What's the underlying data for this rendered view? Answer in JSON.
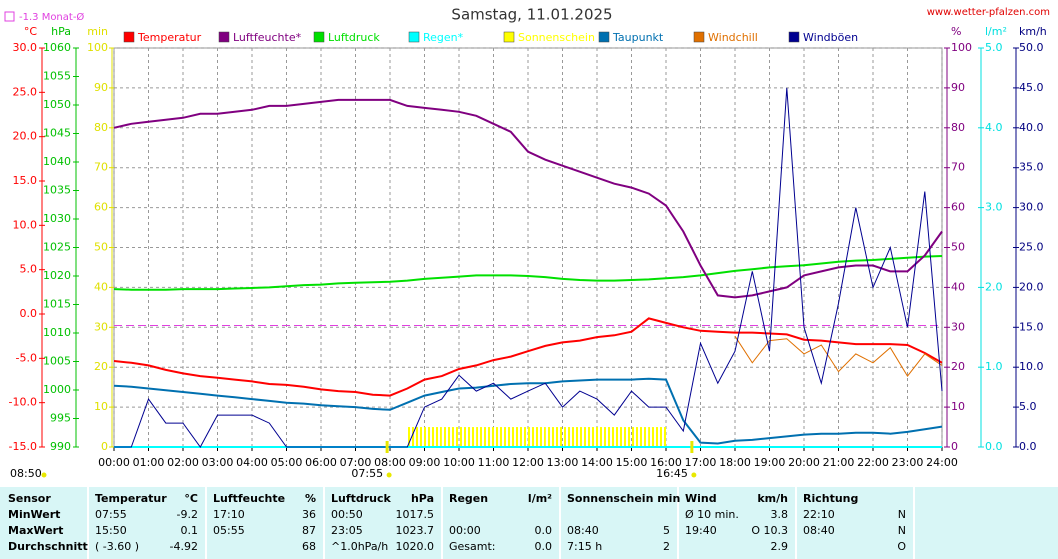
{
  "site": "www.wetter-pfalzen.com",
  "chart_data": {
    "type": "line",
    "title": "Samstag, 11.01.2025",
    "reference": {
      "label": "-1.3 Monat-Ø",
      "value": -1.3,
      "axis": 0,
      "color": "#e040e0"
    },
    "axes": [
      {
        "label": "°C",
        "color": "#ff0000",
        "side": "left",
        "lim": [
          -15,
          30
        ],
        "ticks": [
          {
            "value": -15,
            "label": "-15.0"
          },
          {
            "value": -10,
            "label": "-10.0"
          },
          {
            "value": -5,
            "label": "-5.0"
          },
          {
            "value": 0,
            "label": "0.0"
          },
          {
            "value": 5,
            "label": "5.0"
          },
          {
            "value": 10,
            "label": "10.0"
          },
          {
            "value": 15,
            "label": "15.0"
          },
          {
            "value": 20,
            "label": "20.0"
          },
          {
            "value": 25,
            "label": "25.0"
          },
          {
            "value": 30,
            "label": "30.0"
          }
        ]
      },
      {
        "label": "hPa",
        "color": "#00c000",
        "side": "left",
        "lim": [
          990,
          1060
        ],
        "ticks": [
          990,
          995,
          1000,
          1005,
          1010,
          1015,
          1020,
          1025,
          1030,
          1035,
          1040,
          1045,
          1050,
          1055,
          1060
        ]
      },
      {
        "label": "min",
        "color": "#e0e000",
        "side": "left",
        "lim": [
          0,
          100
        ],
        "ticks": [
          0,
          10,
          20,
          30,
          40,
          50,
          60,
          70,
          80,
          90,
          100
        ]
      },
      {
        "label": "%",
        "color": "#800080",
        "side": "right",
        "lim": [
          0,
          100
        ],
        "ticks": [
          0,
          10,
          20,
          30,
          40,
          50,
          60,
          70,
          80,
          90,
          100
        ],
        "grid": true
      },
      {
        "label": "l/m²",
        "color": "#00e0e0",
        "side": "right",
        "lim": [
          0,
          5
        ],
        "ticks": [
          {
            "value": 0,
            "label": "0.0"
          },
          {
            "value": 1,
            "label": "1.0"
          },
          {
            "value": 2,
            "label": "2.0"
          },
          {
            "value": 3,
            "label": "3.0"
          },
          {
            "value": 4,
            "label": "4.0"
          },
          {
            "value": 5,
            "label": "5.0"
          }
        ]
      },
      {
        "label": "km/h",
        "color": "#000080",
        "side": "right",
        "lim": [
          0,
          50
        ],
        "ticks": [
          {
            "value": 0,
            "label": "0.0"
          },
          {
            "value": 5,
            "label": "5.0"
          },
          {
            "value": 10,
            "label": "10.0"
          },
          {
            "value": 15,
            "label": "15.0"
          },
          {
            "value": 20,
            "label": "20.0"
          },
          {
            "value": 25,
            "label": "25.0"
          },
          {
            "value": 30,
            "label": "30.0"
          },
          {
            "value": 35,
            "label": "35.0"
          },
          {
            "value": 40,
            "label": "40.0"
          },
          {
            "value": 45,
            "label": "45.0"
          },
          {
            "value": 50,
            "label": "50.0"
          }
        ]
      }
    ],
    "xlim": [
      0,
      24
    ],
    "xticks": [
      {
        "value": 0,
        "label": "00:00"
      },
      {
        "value": 1,
        "label": "01:00"
      },
      {
        "value": 2,
        "label": "02:00"
      },
      {
        "value": 3,
        "label": "03:00"
      },
      {
        "value": 4,
        "label": "04:00"
      },
      {
        "value": 5,
        "label": "05:00"
      },
      {
        "value": 6,
        "label": "06:00"
      },
      {
        "value": 7,
        "label": "07:00"
      },
      {
        "value": 8,
        "label": "08:00"
      },
      {
        "value": 9,
        "label": "09:00"
      },
      {
        "value": 10,
        "label": "10:00"
      },
      {
        "value": 11,
        "label": "11:00"
      },
      {
        "value": 12,
        "label": "12:00"
      },
      {
        "value": 13,
        "label": "13:00"
      },
      {
        "value": 14,
        "label": "14:00"
      },
      {
        "value": 15,
        "label": "15:00"
      },
      {
        "value": 16,
        "label": "16:00"
      },
      {
        "value": 17,
        "label": "17:00"
      },
      {
        "value": 18,
        "label": "18:00"
      },
      {
        "value": 19,
        "label": "19:00"
      },
      {
        "value": 20,
        "label": "20:00"
      },
      {
        "value": 21,
        "label": "21:00"
      },
      {
        "value": 22,
        "label": "22:00"
      },
      {
        "value": 23,
        "label": "23:00"
      },
      {
        "value": 24,
        "label": "24:00"
      }
    ],
    "grid": true,
    "x": [
      0,
      0.5,
      1,
      1.5,
      2,
      2.5,
      3,
      3.5,
      4,
      4.5,
      5,
      5.5,
      6,
      6.5,
      7,
      7.5,
      8,
      8.5,
      9,
      9.5,
      10,
      10.5,
      11,
      11.5,
      12,
      12.5,
      13,
      13.5,
      14,
      14.5,
      15,
      15.5,
      16,
      16.5,
      17,
      17.5,
      18,
      18.5,
      19,
      19.5,
      20,
      20.5,
      21,
      21.5,
      22,
      22.5,
      23,
      23.5,
      24
    ],
    "series": [
      {
        "name": "Temperatur",
        "color": "#ff0000",
        "axis": 0,
        "kind": "line",
        "width": 2,
        "values": [
          -5.3,
          -5.5,
          -5.8,
          -6.3,
          -6.7,
          -7.0,
          -7.2,
          -7.4,
          -7.6,
          -7.9,
          -8.0,
          -8.2,
          -8.5,
          -8.7,
          -8.8,
          -9.1,
          -9.2,
          -8.4,
          -7.4,
          -7.0,
          -6.2,
          -5.8,
          -5.2,
          -4.8,
          -4.2,
          -3.6,
          -3.2,
          -3.0,
          -2.6,
          -2.4,
          -2.0,
          -0.5,
          -1.0,
          -1.5,
          -1.9,
          -2.0,
          -2.1,
          -2.1,
          -2.2,
          -2.3,
          -2.9,
          -3.0,
          -3.2,
          -3.4,
          -3.4,
          -3.4,
          -3.5,
          -4.4,
          -5.5
        ]
      },
      {
        "name": "Luftfeuchte*",
        "color": "#800080",
        "axis": 3,
        "kind": "line",
        "width": 2,
        "values": [
          80,
          81,
          81.5,
          82,
          82.5,
          83.5,
          83.5,
          84,
          84.5,
          85.5,
          85.5,
          86,
          86.5,
          87,
          87,
          87,
          87,
          85.5,
          85,
          84.5,
          84,
          83,
          81,
          79,
          74,
          72,
          70.5,
          69,
          67.5,
          66,
          65,
          63.5,
          60.5,
          54,
          45.5,
          38,
          37.5,
          38,
          39,
          40,
          43,
          44,
          45,
          45.5,
          45.5,
          44,
          44,
          48,
          54
        ]
      },
      {
        "name": "Luftdruck",
        "color": "#00e000",
        "axis": 1,
        "kind": "line",
        "width": 2,
        "values": [
          1017.7,
          1017.6,
          1017.6,
          1017.6,
          1017.7,
          1017.7,
          1017.7,
          1017.8,
          1017.9,
          1018.0,
          1018.2,
          1018.4,
          1018.5,
          1018.7,
          1018.8,
          1018.9,
          1019.0,
          1019.2,
          1019.5,
          1019.7,
          1019.9,
          1020.1,
          1020.1,
          1020.1,
          1020.0,
          1019.8,
          1019.5,
          1019.3,
          1019.2,
          1019.2,
          1019.3,
          1019.4,
          1019.6,
          1019.8,
          1020.1,
          1020.5,
          1020.9,
          1021.2,
          1021.5,
          1021.7,
          1021.9,
          1022.2,
          1022.5,
          1022.7,
          1022.8,
          1023.0,
          1023.2,
          1023.4,
          1023.5
        ]
      },
      {
        "name": "Regen*",
        "color": "#00ffff",
        "axis": 4,
        "kind": "line",
        "width": 2,
        "values": [
          0,
          0,
          0,
          0,
          0,
          0,
          0,
          0,
          0,
          0,
          0,
          0,
          0,
          0,
          0,
          0,
          0,
          0,
          0,
          0,
          0,
          0,
          0,
          0,
          0,
          0,
          0,
          0,
          0,
          0,
          0,
          0,
          0,
          0,
          0,
          0,
          0,
          0,
          0,
          0,
          0,
          0,
          0,
          0,
          0,
          0,
          0,
          0,
          0
        ]
      },
      {
        "name": "Sonnenschein",
        "color": "#ffff00",
        "axis": 2,
        "kind": "bars",
        "width": 1,
        "values": [
          0,
          0,
          0,
          0,
          0,
          0,
          0,
          0,
          0,
          0,
          0,
          0,
          0,
          0,
          0,
          0,
          0,
          5,
          5,
          5,
          5,
          5,
          5,
          5,
          5,
          5,
          5,
          5,
          5,
          5,
          5,
          5,
          0,
          0,
          0,
          0,
          0,
          0,
          0,
          0,
          0,
          0,
          0,
          0,
          0,
          0,
          0,
          0,
          0
        ]
      },
      {
        "name": "Taupunkt",
        "color": "#0070b0",
        "axis": 0,
        "kind": "line",
        "width": 2,
        "values": [
          -8.1,
          -8.2,
          -8.4,
          -8.6,
          -8.8,
          -9.0,
          -9.2,
          -9.4,
          -9.6,
          -9.8,
          -10.0,
          -10.1,
          -10.3,
          -10.4,
          -10.5,
          -10.7,
          -10.8,
          -10.0,
          -9.2,
          -8.8,
          -8.4,
          -8.3,
          -8.1,
          -7.9,
          -7.8,
          -7.8,
          -7.6,
          -7.5,
          -7.4,
          -7.4,
          -7.4,
          -7.3,
          -7.4,
          -12.0,
          -14.5,
          -14.6,
          -14.3,
          -14.2,
          -14.0,
          -13.8,
          -13.6,
          -13.5,
          -13.5,
          -13.4,
          -13.4,
          -13.5,
          -13.3,
          -13.0,
          -12.7
        ]
      },
      {
        "name": "Windchill",
        "color": "#e07000",
        "axis": 0,
        "kind": "line",
        "width": 1,
        "values": [
          null,
          null,
          null,
          null,
          null,
          null,
          null,
          null,
          null,
          null,
          null,
          null,
          null,
          null,
          null,
          null,
          null,
          null,
          null,
          null,
          null,
          null,
          null,
          null,
          null,
          null,
          null,
          null,
          null,
          null,
          null,
          null,
          null,
          null,
          null,
          null,
          -2.5,
          -5.5,
          -3.0,
          -2.8,
          -4.5,
          -3.5,
          -6.5,
          -4.5,
          -5.5,
          -3.8,
          -7.0,
          -4.5,
          -5.8
        ]
      },
      {
        "name": "Windböen",
        "color": "#000090",
        "axis": 5,
        "kind": "line",
        "width": 1,
        "values": [
          0,
          0,
          6,
          3,
          3,
          0,
          4,
          4,
          4,
          3,
          0,
          0,
          0,
          0,
          0,
          0,
          0,
          0,
          5,
          6,
          9,
          7,
          8,
          6,
          7,
          8,
          5,
          7,
          6,
          4,
          7,
          5,
          5,
          2,
          13,
          8,
          12,
          22,
          12,
          45,
          15,
          8,
          18,
          30,
          20,
          25,
          15,
          32,
          7
        ]
      }
    ],
    "day_length": "08:50",
    "sunrise": "07:55",
    "sunset": "16:45"
  },
  "table": {
    "header": [
      "Sensor",
      "Temperatur",
      "°C",
      "Luftfeuchte",
      "%",
      "Luftdruck",
      "hPa",
      "Regen",
      "l/m²",
      "Sonnenschein min",
      null,
      "Wind",
      "km/h",
      "Richtung",
      null
    ],
    "rows": [
      [
        "MinWert",
        "07:55",
        "-9.2",
        "17:10",
        "36",
        "00:50",
        "1017.5",
        null,
        null,
        null,
        null,
        "Ø 10 min.",
        "3.8",
        "22:10",
        "N"
      ],
      [
        "MaxWert",
        "15:50",
        "0.1",
        "05:55",
        "87",
        "23:05",
        "1023.7",
        "00:00",
        "0.0",
        "08:40",
        "5",
        "19:40",
        "O 10.3",
        "08:40",
        "N"
      ],
      [
        "Durchschnitt",
        "( -3.60 )",
        "-4.92",
        null,
        "68",
        "^1.0hPa/h",
        "1020.0",
        "Gesamt:",
        "0.0",
        "7:15 h",
        "2",
        null,
        "2.9",
        null,
        "O"
      ]
    ]
  }
}
